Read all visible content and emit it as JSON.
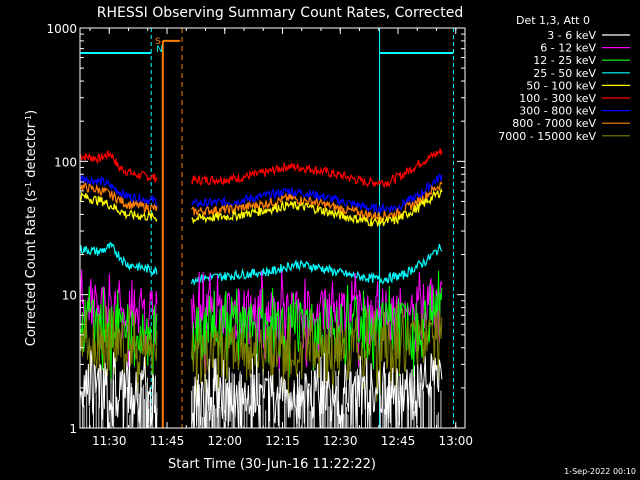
{
  "chart_data": {
    "type": "line",
    "title": "RHESSI Observing Summary Count Rates, Corrected",
    "xlabel": "Start Time (30-Jun-16 11:22:22)",
    "ylabel_main": "Corrected Count Rate (s",
    "ylabel_sup1": "-1",
    "ylabel_mid": " detector",
    "ylabel_sup2": "-1",
    "ylabel_end": ")",
    "yscale": "log",
    "ylim": [
      1,
      1000
    ],
    "xlim_minutes": [
      0,
      100
    ],
    "x_ticks": [
      {
        "label": "11:30",
        "min": 7.6
      },
      {
        "label": "11:45",
        "min": 22.6
      },
      {
        "label": "12:00",
        "min": 37.6
      },
      {
        "label": "12:15",
        "min": 52.6
      },
      {
        "label": "12:30",
        "min": 67.6
      },
      {
        "label": "12:45",
        "min": 82.6
      },
      {
        "label": "13:00",
        "min": 97.6
      }
    ],
    "y_ticks": [
      {
        "label": "1",
        "value": 1
      },
      {
        "label": "10",
        "value": 10
      },
      {
        "label": "100",
        "value": 100
      },
      {
        "label": "1000",
        "value": 1000
      }
    ],
    "legend_header": "Det 1,3, Att 0",
    "legend_position": "right",
    "series": [
      {
        "name": "3 - 6 keV",
        "color": "#ffffff"
      },
      {
        "name": "6 - 12 keV",
        "color": "#ff00ff"
      },
      {
        "name": "12 - 25 keV",
        "color": "#00ff00"
      },
      {
        "name": "25 - 50 keV",
        "color": "#00ffff"
      },
      {
        "name": "50 - 100 keV",
        "color": "#ffff00"
      },
      {
        "name": "100 - 300 keV",
        "color": "#ff0000"
      },
      {
        "name": "300 - 800 keV",
        "color": "#0000ff"
      },
      {
        "name": "800 - 7000 keV",
        "color": "#ff8000"
      },
      {
        "name": "7000 - 15000 keV",
        "color": "#808000"
      }
    ],
    "gaps_minutes": [
      [
        20,
        29
      ]
    ],
    "saa_marker": {
      "S": "S",
      "N": "N"
    },
    "traces": [
      {
        "series": 5,
        "color": "#ff0000",
        "segments": [
          {
            "x": [
              0,
              5,
              8,
              10,
              14,
              20
            ],
            "y": [
              110,
              105,
              115,
              90,
              80,
              75
            ]
          },
          {
            "x": [
              29,
              40,
              48,
              54,
              60,
              68,
              74,
              80,
              84,
              89,
              94
            ],
            "y": [
              72,
              74,
              82,
              92,
              88,
              78,
              70,
              70,
              80,
              100,
              120
            ]
          }
        ]
      },
      {
        "series": 6,
        "color": "#0000ff",
        "segments": [
          {
            "x": [
              0,
              6,
              12,
              20
            ],
            "y": [
              75,
              70,
              55,
              50
            ]
          },
          {
            "x": [
              29,
              40,
              48,
              54,
              60,
              68,
              76,
              82,
              88,
              94
            ],
            "y": [
              48,
              50,
              55,
              60,
              57,
              50,
              44,
              45,
              55,
              78
            ]
          }
        ]
      },
      {
        "series": 7,
        "color": "#ff8000",
        "segments": [
          {
            "x": [
              0,
              6,
              12,
              20
            ],
            "y": [
              65,
              60,
              48,
              44
            ]
          },
          {
            "x": [
              29,
              40,
              48,
              54,
              60,
              68,
              76,
              82,
              88,
              94
            ],
            "y": [
              42,
              44,
              48,
              53,
              50,
              44,
              39,
              40,
              50,
              68
            ]
          }
        ]
      },
      {
        "series": 4,
        "color": "#ffff00",
        "segments": [
          {
            "x": [
              0,
              6,
              12,
              20
            ],
            "y": [
              55,
              50,
              40,
              38
            ]
          },
          {
            "x": [
              29,
              40,
              48,
              54,
              60,
              68,
              76,
              82,
              88,
              94
            ],
            "y": [
              37,
              39,
              43,
              47,
              45,
              39,
              35,
              36,
              45,
              60
            ]
          }
        ]
      },
      {
        "series": 3,
        "color": "#00ffff",
        "segments": [
          {
            "x": [
              0,
              5,
              8,
              12,
              20
            ],
            "y": [
              22,
              21,
              23,
              17,
              15
            ]
          },
          {
            "x": [
              29,
              40,
              50,
              56,
              62,
              70,
              78,
              84,
              90,
              94
            ],
            "y": [
              13,
              14,
              15,
              17,
              16,
              14,
              13,
              14,
              18,
              23
            ]
          }
        ]
      },
      {
        "series": 1,
        "color": "#ff00ff",
        "segments": [
          {
            "x": [
              0,
              10,
              20
            ],
            "y": [
              8.5,
              7.8,
              7.5
            ]
          },
          {
            "x": [
              29,
              45,
              60,
              75,
              88,
              94
            ],
            "y": [
              7.4,
              7.6,
              7.8,
              7.5,
              8.5,
              10
            ]
          }
        ]
      },
      {
        "series": 2,
        "color": "#00ff00",
        "segments": [
          {
            "x": [
              0,
              10,
              20
            ],
            "y": [
              6.5,
              6,
              5.8
            ]
          },
          {
            "x": [
              29,
              45,
              60,
              75,
              88,
              94
            ],
            "y": [
              5.6,
              5.8,
              6.0,
              5.8,
              6.8,
              8.5
            ]
          }
        ]
      },
      {
        "series": 8,
        "color": "#808000",
        "segments": [
          {
            "x": [
              0,
              10,
              20
            ],
            "y": [
              4.5,
              4.2,
              4
            ]
          },
          {
            "x": [
              29,
              45,
              60,
              75,
              88,
              94
            ],
            "y": [
              3.8,
              4.0,
              4.2,
              4.0,
              4.6,
              6
            ]
          }
        ]
      },
      {
        "series": 0,
        "color": "#ffffff",
        "segments": [
          {
            "x": [
              0,
              10,
              20
            ],
            "y": [
              2.2,
              2.0,
              1.8
            ]
          },
          {
            "x": [
              29,
              45,
              60,
              75,
              88,
              94
            ],
            "y": [
              1.7,
              1.8,
              1.9,
              1.8,
              2.2,
              3.0
            ]
          }
        ]
      }
    ]
  },
  "footer_timestamp": "1-Sep-2022 00:10"
}
